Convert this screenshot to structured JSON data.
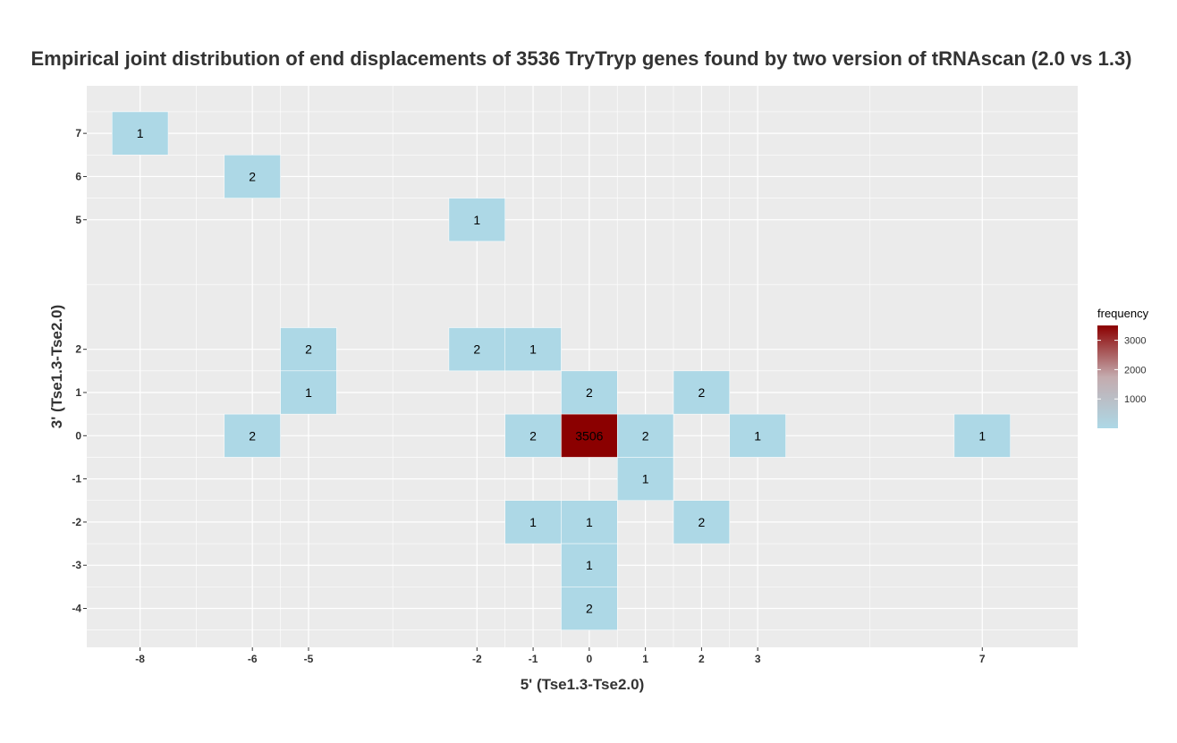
{
  "chart_data": {
    "type": "heatmap",
    "title": "Empirical joint distribution of end displacements of 3536 TryTryp genes found by two version of tRNAscan (2.0 vs 1.3)",
    "xlabel": "5' (Tse1.3-Tse2.0)",
    "ylabel": "3' (Tse1.3-Tse2.0)",
    "x_ticks": [
      -8,
      -6,
      -5,
      -2,
      -1,
      0,
      1,
      2,
      3,
      7
    ],
    "y_ticks": [
      7,
      6,
      5,
      2,
      1,
      0,
      -1,
      -2,
      -3,
      -4
    ],
    "xlim": [
      -8.95,
      8.7
    ],
    "ylim": [
      -4.9,
      8.1
    ],
    "grid": true,
    "legend": {
      "title": "frequency",
      "position": "right",
      "ticks": [
        1000,
        2000,
        3000
      ],
      "range": [
        1,
        3506
      ],
      "color_low": "#add8e6",
      "color_high": "#8b0000"
    },
    "cells": [
      {
        "x": -8,
        "y": 7,
        "value": 1
      },
      {
        "x": -6,
        "y": 6,
        "value": 2
      },
      {
        "x": -2,
        "y": 5,
        "value": 1
      },
      {
        "x": -5,
        "y": 2,
        "value": 2
      },
      {
        "x": -2,
        "y": 2,
        "value": 2
      },
      {
        "x": -1,
        "y": 2,
        "value": 1
      },
      {
        "x": -5,
        "y": 1,
        "value": 1
      },
      {
        "x": 0,
        "y": 1,
        "value": 2
      },
      {
        "x": 2,
        "y": 1,
        "value": 2
      },
      {
        "x": -6,
        "y": 0,
        "value": 2
      },
      {
        "x": -1,
        "y": 0,
        "value": 2
      },
      {
        "x": 0,
        "y": 0,
        "value": 3506
      },
      {
        "x": 1,
        "y": 0,
        "value": 2
      },
      {
        "x": 3,
        "y": 0,
        "value": 1
      },
      {
        "x": 7,
        "y": 0,
        "value": 1
      },
      {
        "x": 1,
        "y": -1,
        "value": 1
      },
      {
        "x": -1,
        "y": -2,
        "value": 1
      },
      {
        "x": 0,
        "y": -2,
        "value": 1
      },
      {
        "x": 2,
        "y": -2,
        "value": 2
      },
      {
        "x": 0,
        "y": -3,
        "value": 1
      },
      {
        "x": 0,
        "y": -4,
        "value": 2
      }
    ]
  }
}
